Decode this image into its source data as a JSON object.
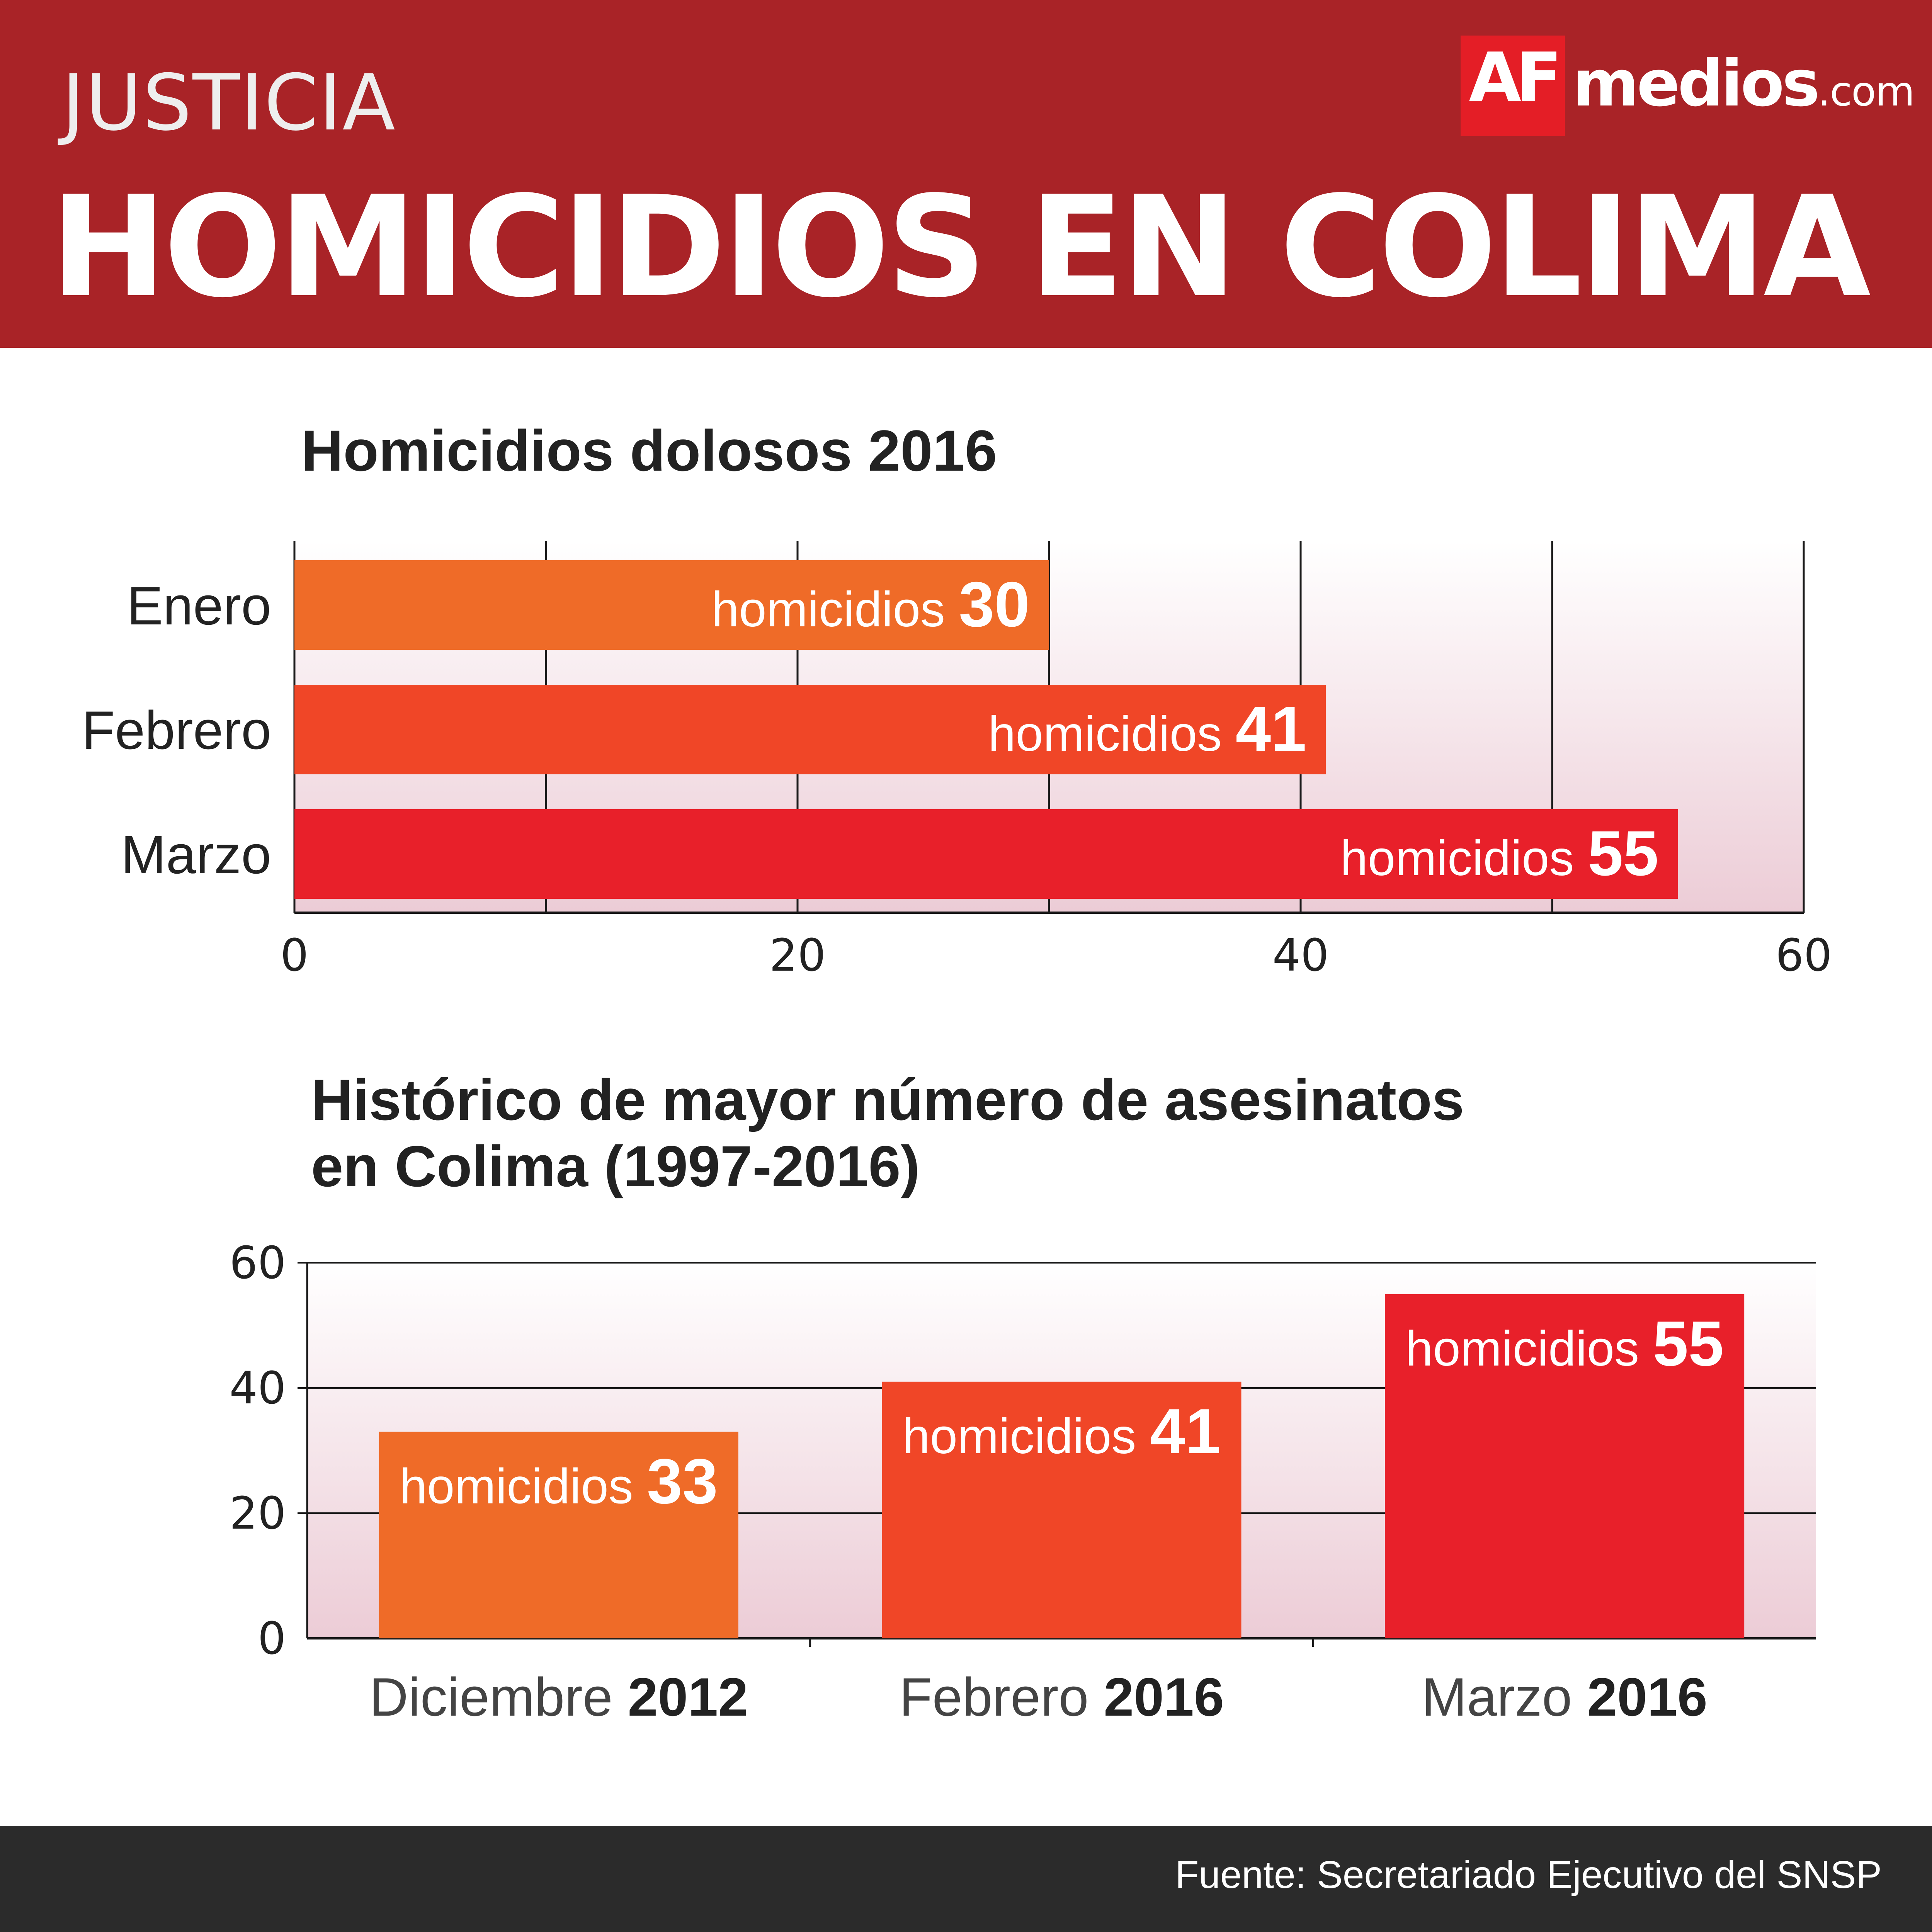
{
  "header": {
    "section": "JUSTICIA",
    "title": "HOMICIDIOS EN COLIMA",
    "logo": {
      "af": "AF",
      "medios": "medios",
      "com": ".com"
    }
  },
  "colors": {
    "header_bg": "#a92327",
    "footer_bg": "#2b2b2b",
    "orange": "#ef6b28",
    "red_orange": "#f04627",
    "red": "#e8202a"
  },
  "footer": {
    "source": "Fuente: Secretariado Ejecutivo del SNSP"
  },
  "chart_data": [
    {
      "type": "bar",
      "orientation": "horizontal",
      "title": "Homicidios dolosos 2016",
      "categories": [
        "Enero",
        "Febrero",
        "Marzo"
      ],
      "values": [
        30,
        41,
        55
      ],
      "bar_label_prefix": "homicidios",
      "bar_colors": [
        "#ef6b28",
        "#f04627",
        "#e8202a"
      ],
      "xlim": [
        0,
        60
      ],
      "x_ticks": [
        0,
        20,
        40,
        60
      ],
      "grid": true
    },
    {
      "type": "bar",
      "orientation": "vertical",
      "title": "Histórico de mayor número de asesinatos en Colima (1997-2016)",
      "title_lines": [
        "Histórico de mayor número de asesinatos",
        "en Colima (1997-2016)"
      ],
      "categories": [
        {
          "month": "Diciembre",
          "year": "2012"
        },
        {
          "month": "Febrero",
          "year": "2016"
        },
        {
          "month": "Marzo",
          "year": "2016"
        }
      ],
      "values": [
        33,
        41,
        55
      ],
      "bar_label_prefix": "homicidios",
      "bar_colors": [
        "#ef6b28",
        "#f04627",
        "#e8202a"
      ],
      "ylim": [
        0,
        60
      ],
      "y_ticks": [
        0,
        20,
        40,
        60
      ],
      "grid": true
    }
  ]
}
